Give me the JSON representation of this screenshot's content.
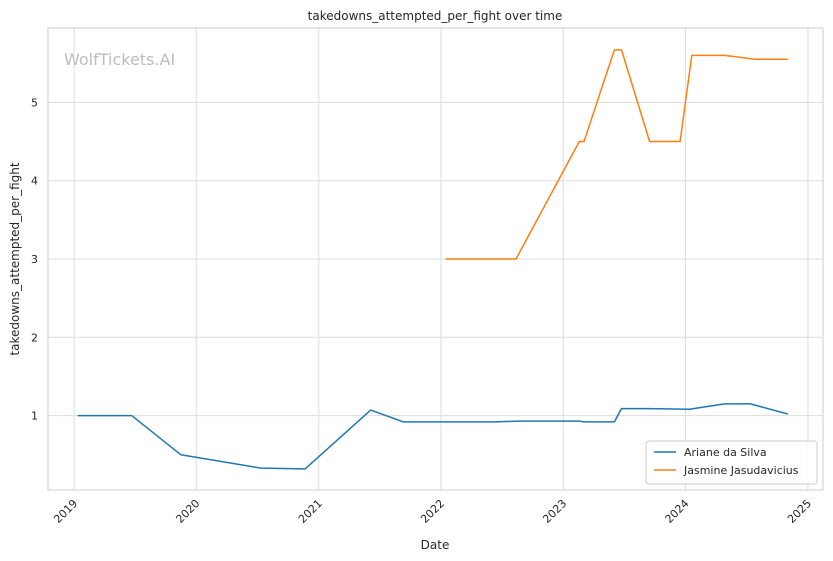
{
  "watermark": "WolfTickets.AI",
  "chart_data": {
    "type": "line",
    "title": "takedowns_attempted_per_fight over time",
    "xlabel": "Date",
    "ylabel": "takedowns_attempted_per_fight",
    "x_ticks": [
      "2019",
      "2020",
      "2021",
      "2022",
      "2023",
      "2024",
      "2025"
    ],
    "y_ticks": [
      "1",
      "2",
      "3",
      "4",
      "5"
    ],
    "xlim": [
      "2018-10-15",
      "2025-02-15"
    ],
    "ylim": [
      0.05,
      5.95
    ],
    "grid": true,
    "legend_position": "lower right",
    "series": [
      {
        "name": "Ariane da Silva",
        "color": "#1f77b4",
        "points": [
          [
            "2019-01-12",
            1.0
          ],
          [
            "2019-06-22",
            1.0
          ],
          [
            "2019-11-16",
            0.5
          ],
          [
            "2020-07-11",
            0.33
          ],
          [
            "2020-11-21",
            0.32
          ],
          [
            "2021-06-05",
            1.07
          ],
          [
            "2021-09-11",
            0.92
          ],
          [
            "2022-06-11",
            0.92
          ],
          [
            "2022-08-20",
            0.93
          ],
          [
            "2023-02-18",
            0.93
          ],
          [
            "2023-03-04",
            0.92
          ],
          [
            "2023-06-03",
            0.92
          ],
          [
            "2023-06-24",
            1.09
          ],
          [
            "2023-09-16",
            1.09
          ],
          [
            "2024-01-13",
            1.08
          ],
          [
            "2024-04-27",
            1.15
          ],
          [
            "2024-07-13",
            1.15
          ],
          [
            "2024-11-02",
            1.02
          ]
        ]
      },
      {
        "name": "Jasmine Jasudavicius",
        "color": "#ff7f0e",
        "points": [
          [
            "2022-01-15",
            3.0
          ],
          [
            "2022-08-13",
            3.0
          ],
          [
            "2023-02-18",
            4.5
          ],
          [
            "2023-03-04",
            4.5
          ],
          [
            "2023-06-03",
            5.67
          ],
          [
            "2023-06-24",
            5.67
          ],
          [
            "2023-09-16",
            4.5
          ],
          [
            "2023-12-16",
            4.5
          ],
          [
            "2024-01-20",
            5.6
          ],
          [
            "2024-04-27",
            5.6
          ],
          [
            "2024-07-27",
            5.55
          ],
          [
            "2024-11-02",
            5.55
          ]
        ]
      }
    ]
  }
}
